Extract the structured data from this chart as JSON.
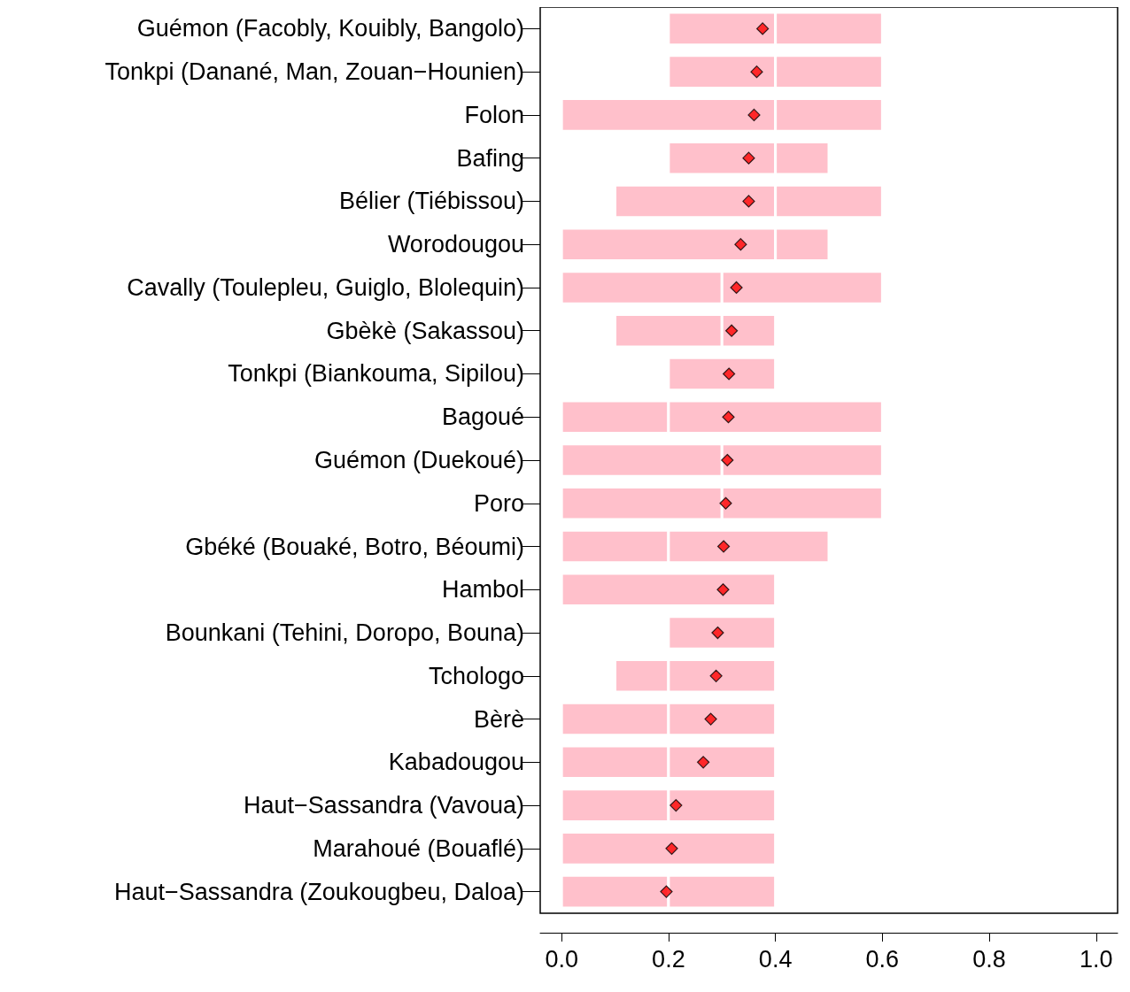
{
  "chart_data": {
    "type": "bar",
    "orientation": "horizontal",
    "categories": [
      "Guémon (Facobly, Kouibly, Bangolo)",
      "Tonkpi (Danané, Man, Zouan−Hounien)",
      "Folon",
      "Bafing",
      "Bélier (Tiébissou)",
      "Worodougou",
      "Cavally (Toulepleu, Guiglo, Blolequin)",
      "Gbèkè (Sakassou)",
      "Tonkpi (Biankouma, Sipilou)",
      "Bagoué",
      "Guémon (Duekoué)",
      "Poro",
      "Gbéké (Bouaké, Botro, Béoumi)",
      "Hambol",
      "Bounkani (Tehini, Doropo, Bouna)",
      "Tchologo",
      "Bèrè",
      "Kabadougou",
      "Haut−Sassandra (Vavoua)",
      "Marahoué (Bouaflé)",
      "Haut−Sassandra (Zoukougbeu, Daloa)"
    ],
    "series": [
      {
        "color": "#ffc0cb",
        "base": [
          0.2,
          0.2,
          0,
          0.2,
          0.1,
          0,
          0,
          0.1,
          0.2,
          0,
          0,
          0,
          0,
          0,
          0.2,
          0.1,
          0,
          0,
          0,
          0,
          0
        ],
        "values": [
          0.2,
          0.2,
          0.4,
          0.2,
          0.3,
          0.4,
          0.3,
          0.2,
          0.2,
          0.2,
          0.3,
          0.3,
          0.2,
          0.4,
          0.2,
          0.1,
          0.2,
          0.2,
          0.2,
          0.4,
          0.2
        ]
      },
      {
        "color": "#ffc0cb",
        "base": [
          0.4,
          0.4,
          0.4,
          0.4,
          0.4,
          0.4,
          0.3,
          0.3,
          null,
          0.2,
          0.3,
          0.3,
          0.2,
          null,
          null,
          0.2,
          0.2,
          0.2,
          0.2,
          null,
          0.2
        ],
        "values": [
          0.2,
          0.2,
          0.2,
          0.1,
          0.2,
          0.1,
          0.3,
          0.1,
          null,
          0.4,
          0.3,
          0.3,
          0.3,
          null,
          null,
          0.2,
          0.2,
          0.2,
          0.2,
          null,
          0.2
        ]
      },
      {
        "type": "scatter",
        "color": "#ff0000",
        "marker": "diamond",
        "x": [
          "Guémon (Facobly, Kouibly, Bangolo)",
          "Tonkpi (Danané, Man, Zouan−Hounien)",
          "Folon",
          "Bafing",
          "Bélier (Tiébissou)",
          "Worodougou",
          "Cavally (Toulepleu, Guiglo, Blolequin)",
          "Gbèkè (Sakassou)",
          "Tonkpi (Biankouma, Sipilou)",
          "Bagoué",
          "Guémon (Duekoué)",
          "Poro",
          "Gbéké (Bouaké, Botro, Béoumi)",
          "Hambol",
          "Bounkani (Tehini, Doropo, Bouna)",
          "Tchologo",
          "Bèrè",
          "Kabadougou",
          "Haut−Sassandra (Vavoua)",
          "Marahoué (Bouaflé)",
          "Haut−Sassandra (Zoukougbeu, Daloa)"
        ],
        "values": [
          0.376,
          0.365,
          0.36,
          0.35,
          0.35,
          0.335,
          0.327,
          0.318,
          0.313,
          0.312,
          0.31,
          0.307,
          0.303,
          0.302,
          0.292,
          0.289,
          0.279,
          0.265,
          0.214,
          0.206,
          0.196
        ]
      }
    ],
    "xlim": [
      -0.04,
      1.04
    ],
    "xticks": [
      {
        "value": 0,
        "label": "0.0"
      },
      {
        "value": 0.2,
        "label": "0.2"
      },
      {
        "value": 0.4,
        "label": "0.4"
      },
      {
        "value": 0.6,
        "label": "0.6"
      },
      {
        "value": 0.8,
        "label": "0.8"
      },
      {
        "value": 1,
        "label": "1.0"
      }
    ],
    "grid": false
  }
}
